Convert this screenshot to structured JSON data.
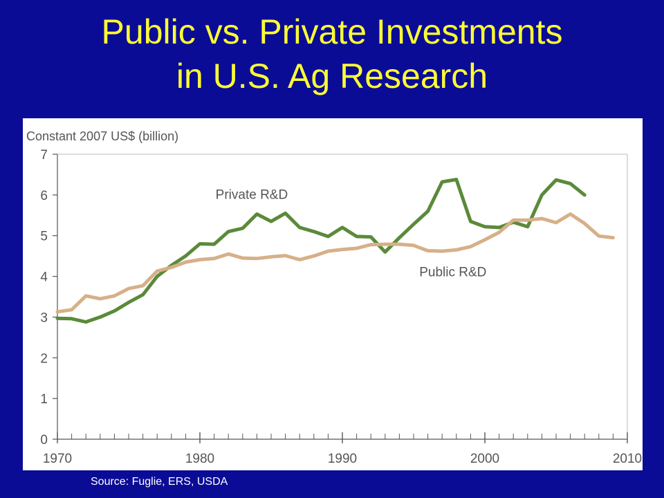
{
  "slide": {
    "title_line1": "Public vs. Private Investments",
    "title_line2": "in U.S. Ag Research",
    "source": "Source: Fuglie, ERS, USDA"
  },
  "colors": {
    "background": "#0b0c96",
    "title": "#ffff33",
    "private_series": "#5b8a3a",
    "public_series": "#d6b088",
    "axis": "#555555"
  },
  "chart_data": {
    "type": "line",
    "title": "",
    "ylabel": "Constant 2007 US$ (billion)",
    "xlabel": "",
    "xlim": [
      1970,
      2010
    ],
    "ylim": [
      0,
      7
    ],
    "x_ticks": [
      1970,
      1980,
      1990,
      2000,
      2010
    ],
    "y_ticks": [
      0,
      1,
      2,
      3,
      4,
      5,
      6,
      7
    ],
    "grid": false,
    "series": [
      {
        "name": "Private R&D",
        "color": "#5b8a3a",
        "x": [
          1970,
          1971,
          1972,
          1973,
          1974,
          1975,
          1976,
          1977,
          1978,
          1979,
          1980,
          1981,
          1982,
          1983,
          1984,
          1985,
          1986,
          1987,
          1988,
          1989,
          1990,
          1991,
          1992,
          1993,
          1994,
          1995,
          1996,
          1997,
          1998,
          1999,
          2000,
          2001,
          2002,
          2003,
          2004,
          2005,
          2006,
          2007
        ],
        "values": [
          2.97,
          2.96,
          2.88,
          3.0,
          3.15,
          3.36,
          3.55,
          4.0,
          4.27,
          4.5,
          4.8,
          4.79,
          5.1,
          5.18,
          5.53,
          5.35,
          5.55,
          5.2,
          5.1,
          4.98,
          5.2,
          4.98,
          4.97,
          4.6,
          4.95,
          5.28,
          5.6,
          6.32,
          6.38,
          5.35,
          5.22,
          5.2,
          5.33,
          5.22,
          6.0,
          6.37,
          6.28,
          6.0
        ]
      },
      {
        "name": "Public R&D",
        "color": "#d6b088",
        "x": [
          1970,
          1971,
          1972,
          1973,
          1974,
          1975,
          1976,
          1977,
          1978,
          1979,
          1980,
          1981,
          1982,
          1983,
          1984,
          1985,
          1986,
          1987,
          1988,
          1989,
          1990,
          1991,
          1992,
          1993,
          1994,
          1995,
          1996,
          1997,
          1998,
          1999,
          2000,
          2001,
          2002,
          2003,
          2004,
          2005,
          2006,
          2007,
          2008,
          2009
        ],
        "values": [
          3.13,
          3.18,
          3.52,
          3.45,
          3.52,
          3.7,
          3.77,
          4.13,
          4.22,
          4.35,
          4.41,
          4.44,
          4.55,
          4.45,
          4.44,
          4.48,
          4.51,
          4.41,
          4.5,
          4.62,
          4.66,
          4.69,
          4.78,
          4.79,
          4.79,
          4.76,
          4.63,
          4.62,
          4.65,
          4.73,
          4.9,
          5.08,
          5.38,
          5.38,
          5.42,
          5.32,
          5.53,
          5.3,
          4.99,
          4.95
        ]
      }
    ],
    "annotations": [
      {
        "text": "Private R&D",
        "x": 1981.1,
        "y": 5.9
      },
      {
        "text": "Public R&D",
        "x": 1995.4,
        "y": 4.0
      }
    ]
  }
}
